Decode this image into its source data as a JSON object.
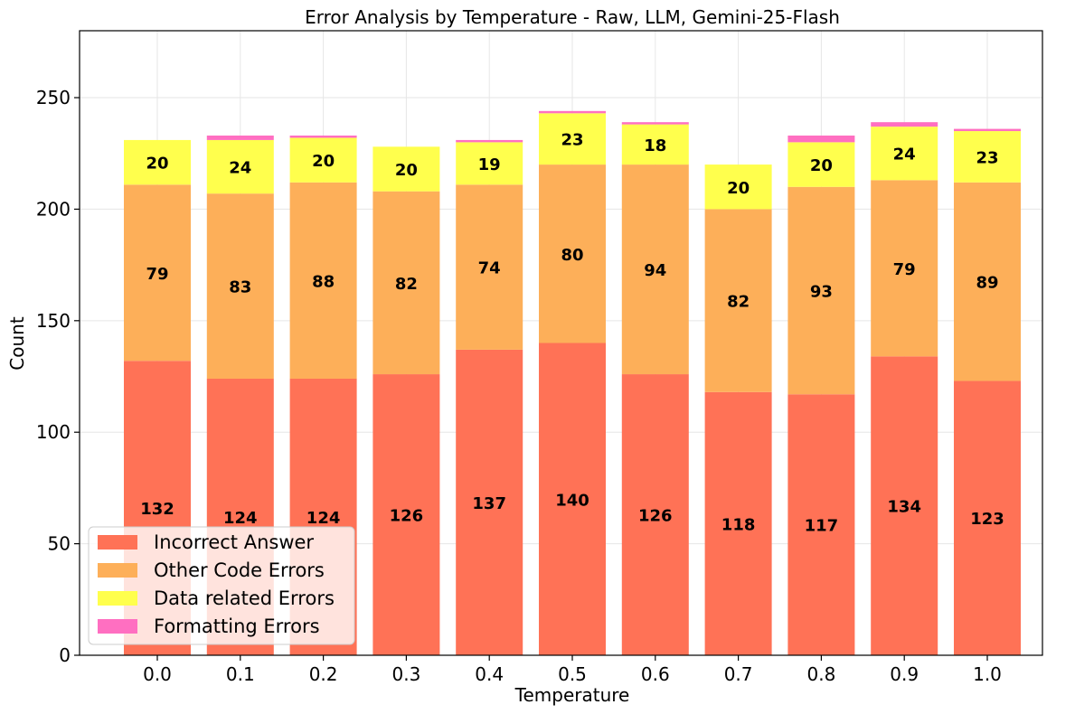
{
  "chart_data": {
    "type": "bar",
    "stacked": true,
    "title": "Error Analysis by Temperature - Raw, LLM, Gemini-25-Flash",
    "xlabel": "Temperature",
    "ylabel": "Count",
    "categories": [
      "0.0",
      "0.1",
      "0.2",
      "0.3",
      "0.4",
      "0.5",
      "0.6",
      "0.7",
      "0.8",
      "0.9",
      "1.0"
    ],
    "ylim": [
      0,
      280
    ],
    "yticks": [
      0,
      50,
      100,
      150,
      200,
      250
    ],
    "grid": true,
    "legend_position": "bottom-left",
    "series": [
      {
        "name": "Incorrect Answer",
        "color": "#FF7256",
        "values": [
          132,
          124,
          124,
          126,
          137,
          140,
          126,
          118,
          117,
          134,
          123
        ],
        "show_labels": true
      },
      {
        "name": "Other Code Errors",
        "color": "#FDAF59",
        "values": [
          79,
          83,
          88,
          82,
          74,
          80,
          94,
          82,
          93,
          79,
          89
        ],
        "show_labels": true
      },
      {
        "name": "Data related Errors",
        "color": "#FFFF4D",
        "values": [
          20,
          24,
          20,
          20,
          19,
          23,
          18,
          20,
          20,
          24,
          23
        ],
        "show_labels": true
      },
      {
        "name": "Formatting Errors",
        "color": "#FF6FC1",
        "values": [
          0,
          2,
          1,
          0,
          1,
          1,
          1,
          0,
          3,
          2,
          1
        ],
        "show_labels": false
      }
    ]
  }
}
